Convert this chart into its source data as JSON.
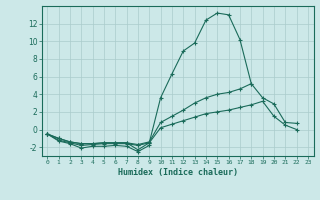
{
  "xlabel": "Humidex (Indice chaleur)",
  "bg_color": "#cce8e8",
  "grid_color": "#aacccc",
  "line_color": "#1a6b5a",
  "x": [
    0,
    1,
    2,
    3,
    4,
    5,
    6,
    7,
    8,
    9,
    10,
    11,
    12,
    13,
    14,
    15,
    16,
    17,
    18,
    19,
    20,
    21,
    22,
    23
  ],
  "series1": [
    -0.5,
    -1.3,
    -1.6,
    -2.1,
    -1.9,
    -1.9,
    -1.8,
    -1.9,
    -2.5,
    -1.8,
    null,
    null,
    null,
    null,
    null,
    null,
    null,
    null,
    null,
    null,
    null,
    null,
    null,
    null
  ],
  "series2": [
    -0.5,
    -1.2,
    -1.5,
    -1.8,
    -1.7,
    -1.6,
    -1.6,
    -1.6,
    -1.8,
    -1.5,
    0.2,
    0.6,
    1.0,
    1.4,
    1.8,
    2.0,
    2.2,
    2.5,
    2.8,
    3.2,
    1.5,
    0.5,
    0.0,
    null
  ],
  "series3": [
    -0.5,
    -1.0,
    -1.4,
    -1.6,
    -1.6,
    -1.5,
    -1.5,
    -1.5,
    -1.7,
    -1.4,
    0.8,
    1.5,
    2.2,
    3.0,
    3.6,
    4.0,
    4.2,
    4.6,
    5.2,
    3.6,
    2.9,
    0.8,
    0.7,
    null
  ],
  "series4": [
    -0.5,
    -1.0,
    -1.4,
    -1.6,
    -1.6,
    -1.5,
    -1.5,
    -1.5,
    -2.3,
    -1.5,
    3.6,
    6.3,
    8.9,
    9.8,
    12.4,
    13.2,
    13.0,
    10.2,
    5.2,
    null,
    null,
    null,
    null,
    null
  ],
  "ylim": [
    -3,
    14
  ],
  "yticks": [
    -2,
    0,
    2,
    4,
    6,
    8,
    10,
    12
  ],
  "xticks": [
    0,
    1,
    2,
    3,
    4,
    5,
    6,
    7,
    8,
    9,
    10,
    11,
    12,
    13,
    14,
    15,
    16,
    17,
    18,
    19,
    20,
    21,
    22,
    23
  ]
}
